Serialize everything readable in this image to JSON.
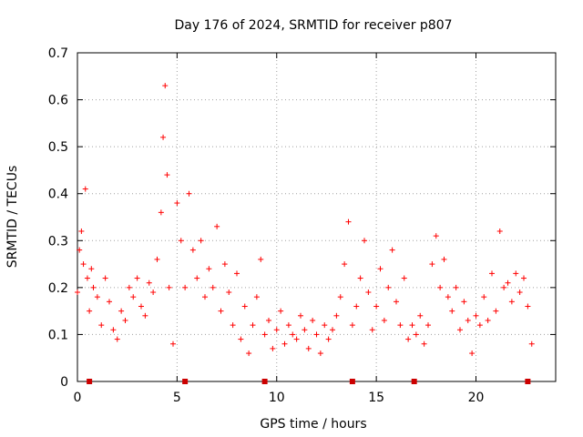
{
  "chart_data": {
    "type": "scatter",
    "title": "Day 176 of 2024, SRMTID for receiver p807",
    "xlabel": "GPS time / hours",
    "ylabel": "SRMTID / TECUs",
    "xlim": [
      0,
      24
    ],
    "ylim": [
      0,
      0.7
    ],
    "xticks": [
      0,
      5,
      10,
      15,
      20
    ],
    "xtick_labels": [
      "0",
      "5",
      "10",
      "15",
      "20"
    ],
    "yticks": [
      0,
      0.1,
      0.2,
      0.3,
      0.4,
      0.5,
      0.6,
      0.7
    ],
    "ytick_labels": [
      "0",
      "0.1",
      "0.2",
      "0.3",
      "0.4",
      "0.5",
      "0.6",
      "0.7"
    ],
    "grid": true,
    "marker": "+",
    "series": [
      {
        "name": "SRMTID",
        "color": "#ff0000",
        "x": [
          0.0,
          0.1,
          0.2,
          0.3,
          0.4,
          0.5,
          0.6,
          0.7,
          0.8,
          1.0,
          1.2,
          1.4,
          1.6,
          1.8,
          2.0,
          2.2,
          2.4,
          2.6,
          2.8,
          3.0,
          3.2,
          3.4,
          3.6,
          3.8,
          4.0,
          4.2,
          4.3,
          4.4,
          4.5,
          4.6,
          4.8,
          5.0,
          5.2,
          5.4,
          5.6,
          5.8,
          6.0,
          6.2,
          6.4,
          6.6,
          6.8,
          7.0,
          7.2,
          7.4,
          7.6,
          7.8,
          8.0,
          8.2,
          8.4,
          8.6,
          8.8,
          9.0,
          9.2,
          9.4,
          9.6,
          9.8,
          10.0,
          10.2,
          10.4,
          10.6,
          10.8,
          11.0,
          11.2,
          11.4,
          11.6,
          11.8,
          12.0,
          12.2,
          12.4,
          12.6,
          12.8,
          13.0,
          13.2,
          13.4,
          13.6,
          13.8,
          14.0,
          14.2,
          14.4,
          14.6,
          14.8,
          15.0,
          15.2,
          15.4,
          15.6,
          15.8,
          16.0,
          16.2,
          16.4,
          16.6,
          16.8,
          17.0,
          17.2,
          17.4,
          17.6,
          17.8,
          18.0,
          18.2,
          18.4,
          18.6,
          18.8,
          19.0,
          19.2,
          19.4,
          19.6,
          19.8,
          20.0,
          20.2,
          20.4,
          20.6,
          20.8,
          21.0,
          21.2,
          21.4,
          21.6,
          21.8,
          22.0,
          22.2,
          22.4,
          22.6,
          22.8
        ],
        "y": [
          0.19,
          0.28,
          0.32,
          0.25,
          0.41,
          0.22,
          0.15,
          0.24,
          0.2,
          0.18,
          0.12,
          0.22,
          0.17,
          0.11,
          0.09,
          0.15,
          0.13,
          0.2,
          0.18,
          0.22,
          0.16,
          0.14,
          0.21,
          0.19,
          0.26,
          0.36,
          0.52,
          0.63,
          0.44,
          0.2,
          0.08,
          0.38,
          0.3,
          0.2,
          0.4,
          0.28,
          0.22,
          0.3,
          0.18,
          0.24,
          0.2,
          0.33,
          0.15,
          0.25,
          0.19,
          0.12,
          0.23,
          0.09,
          0.16,
          0.06,
          0.12,
          0.18,
          0.26,
          0.1,
          0.13,
          0.07,
          0.11,
          0.15,
          0.08,
          0.12,
          0.1,
          0.09,
          0.14,
          0.11,
          0.07,
          0.13,
          0.1,
          0.06,
          0.12,
          0.09,
          0.11,
          0.14,
          0.18,
          0.25,
          0.34,
          0.12,
          0.16,
          0.22,
          0.3,
          0.19,
          0.11,
          0.16,
          0.24,
          0.13,
          0.2,
          0.28,
          0.17,
          0.12,
          0.22,
          0.09,
          0.12,
          0.1,
          0.14,
          0.08,
          0.12,
          0.25,
          0.31,
          0.2,
          0.26,
          0.18,
          0.15,
          0.2,
          0.11,
          0.17,
          0.13,
          0.06,
          0.14,
          0.12,
          0.18,
          0.13,
          0.23,
          0.15,
          0.32,
          0.2,
          0.21,
          0.17,
          0.23,
          0.19,
          0.22,
          0.16,
          0.08
        ]
      }
    ],
    "bottom_markers_x": [
      0.6,
      5.4,
      9.4,
      13.8,
      16.9,
      22.6
    ]
  }
}
